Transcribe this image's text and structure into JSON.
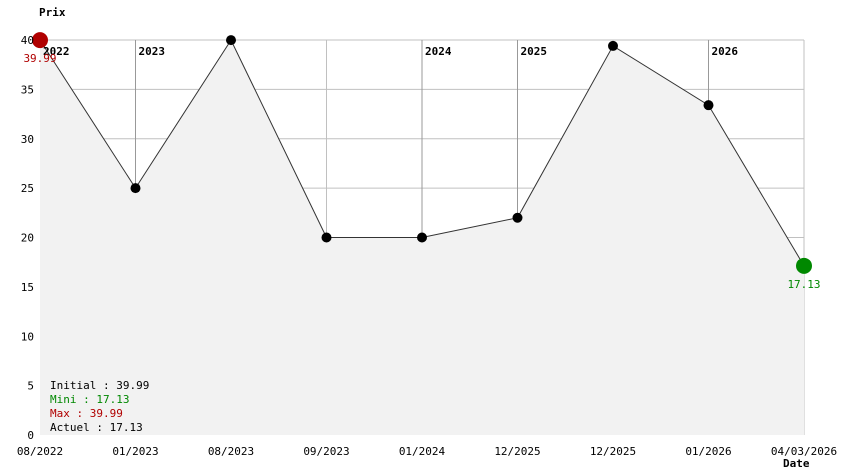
{
  "chart_data": {
    "type": "area",
    "ylabel": "Prix",
    "xlabel": "Date",
    "ylim": [
      0,
      40
    ],
    "yticks": [
      0,
      5,
      10,
      15,
      20,
      25,
      30,
      35,
      40
    ],
    "grid": true,
    "categories": [
      "08/2022",
      "01/2023",
      "08/2023",
      "09/2023",
      "01/2024",
      "12/2025",
      "12/2025",
      "01/2026",
      "04/03/2026"
    ],
    "values": [
      39.99,
      25,
      39.99,
      20,
      20,
      22,
      39.4,
      33.4,
      17.13
    ],
    "year_markers": [
      {
        "index": 0,
        "label": "2022"
      },
      {
        "index": 1,
        "label": "2023"
      },
      {
        "index": 4,
        "label": "2024"
      },
      {
        "index": 5,
        "label": "2025"
      },
      {
        "index": 7,
        "label": "2026"
      }
    ],
    "max_point": {
      "index": 0,
      "label": "39.99",
      "color": "#b00000"
    },
    "min_point": {
      "index": 8,
      "label": "17.13",
      "color": "#008800"
    },
    "colors": {
      "fill": "#f2f2f2",
      "line": "#333333",
      "grid": "#c0c0c0",
      "year_line": "#999999",
      "point": "#000000"
    }
  },
  "summary": {
    "initial": "Initial : 39.99",
    "mini": "Mini : 17.13",
    "max": "Max : 39.99",
    "actuel": "Actuel : 17.13"
  }
}
